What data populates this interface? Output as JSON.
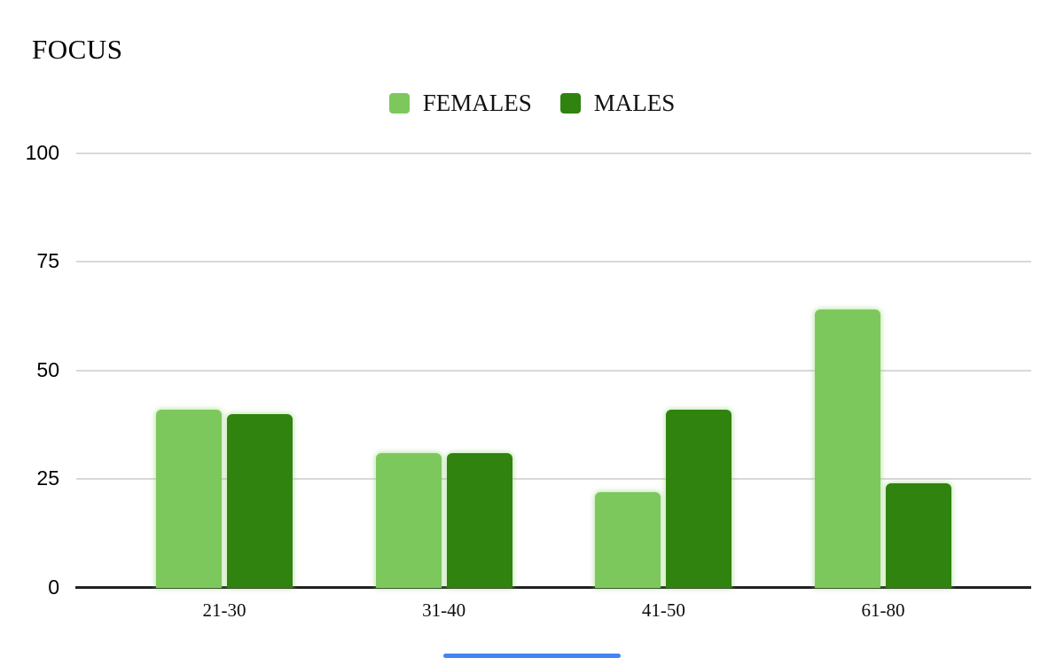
{
  "title": "FOCUS",
  "chart_data": {
    "type": "bar",
    "title": "FOCUS",
    "categories": [
      "21-30",
      "31-40",
      "41-50",
      "61-80"
    ],
    "series": [
      {
        "name": "FEMALES",
        "color": "#7cc85c",
        "values": [
          41,
          31,
          22,
          64
        ]
      },
      {
        "name": "MALES",
        "color": "#2f830e",
        "values": [
          40,
          31,
          41,
          24
        ]
      }
    ],
    "ylim": [
      0,
      100
    ],
    "yticks": [
      0,
      25,
      50,
      75,
      100
    ],
    "xlabel": "",
    "ylabel": "",
    "grid": true,
    "legend_position": "top-center"
  },
  "colors": {
    "female_green": "#7cc85c",
    "male_green": "#2f830e",
    "gridline": "#d9d9d9",
    "axis_line": "#212121",
    "text": "#000000",
    "scroll_indicator_blue": "#4285f4"
  }
}
